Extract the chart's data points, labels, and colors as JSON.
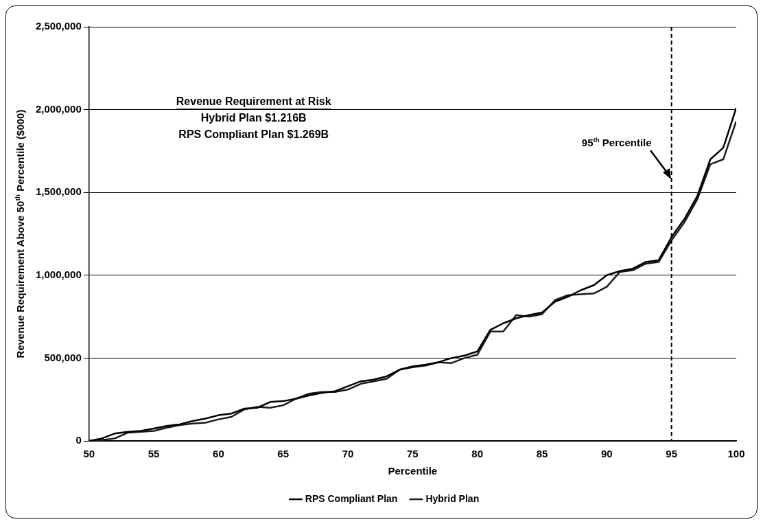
{
  "chart_data": {
    "type": "line",
    "xlabel": "Percentile",
    "ylabel": "Revenue Requirement Above 50$^{th}$ Percentile ($000)",
    "x": [
      50,
      51,
      52,
      53,
      54,
      55,
      56,
      57,
      58,
      59,
      60,
      61,
      62,
      63,
      64,
      65,
      66,
      67,
      68,
      69,
      70,
      71,
      72,
      73,
      74,
      75,
      76,
      77,
      78,
      79,
      80,
      81,
      82,
      83,
      84,
      85,
      86,
      87,
      88,
      89,
      90,
      91,
      92,
      93,
      94,
      95,
      96,
      97,
      98,
      99,
      100
    ],
    "series": [
      {
        "name": "RPS Compliant Plan",
        "color": "#000000",
        "values": [
          0,
          15000,
          45000,
          55000,
          60000,
          75000,
          90000,
          100000,
          120000,
          135000,
          155000,
          165000,
          195000,
          200000,
          235000,
          240000,
          255000,
          275000,
          290000,
          300000,
          330000,
          360000,
          370000,
          390000,
          430000,
          450000,
          460000,
          475000,
          500000,
          515000,
          540000,
          670000,
          710000,
          740000,
          760000,
          775000,
          840000,
          870000,
          910000,
          940000,
          1000000,
          1025000,
          1040000,
          1080000,
          1090000,
          1230000,
          1340000,
          1480000,
          1700000,
          1770000,
          2010000
        ]
      },
      {
        "name": "Hybrid Plan",
        "color": "#1a1a1a",
        "values": [
          0,
          5000,
          15000,
          50000,
          55000,
          60000,
          80000,
          95000,
          105000,
          110000,
          130000,
          145000,
          190000,
          205000,
          200000,
          215000,
          255000,
          285000,
          295000,
          295000,
          310000,
          345000,
          360000,
          375000,
          430000,
          445000,
          455000,
          475000,
          470000,
          500000,
          520000,
          660000,
          660000,
          760000,
          750000,
          765000,
          850000,
          880000,
          885000,
          890000,
          930000,
          1020000,
          1030000,
          1070000,
          1080000,
          1210000,
          1320000,
          1460000,
          1670000,
          1700000,
          1930000
        ]
      }
    ],
    "xlim": [
      50,
      100
    ],
    "xticks": [
      50,
      55,
      60,
      65,
      70,
      75,
      80,
      85,
      90,
      95,
      100
    ],
    "ylim": [
      0,
      2500000
    ],
    "yticks": [
      0,
      {
        "value": 500000,
        "label": "500,000"
      },
      {
        "value": 1000000,
        "label": "1,000,000"
      },
      {
        "value": 1500000,
        "label": "1,500,000"
      },
      {
        "value": 2000000,
        "label": "2,000,000"
      },
      {
        "value": 2500000,
        "label": "2,500,000"
      }
    ],
    "grid": "y",
    "legend": "bottom",
    "marker": "none",
    "line_style": "solid",
    "ref_lines": [
      {
        "axis": "x",
        "value": 95,
        "label": "95$^{th}$ Percentile",
        "line_style": "dashed"
      }
    ],
    "annotations": [
      "Revenue Requirement at Risk",
      "Hybrid Plan $1.216B",
      "RPS Compliant Plan $1.269B"
    ]
  }
}
